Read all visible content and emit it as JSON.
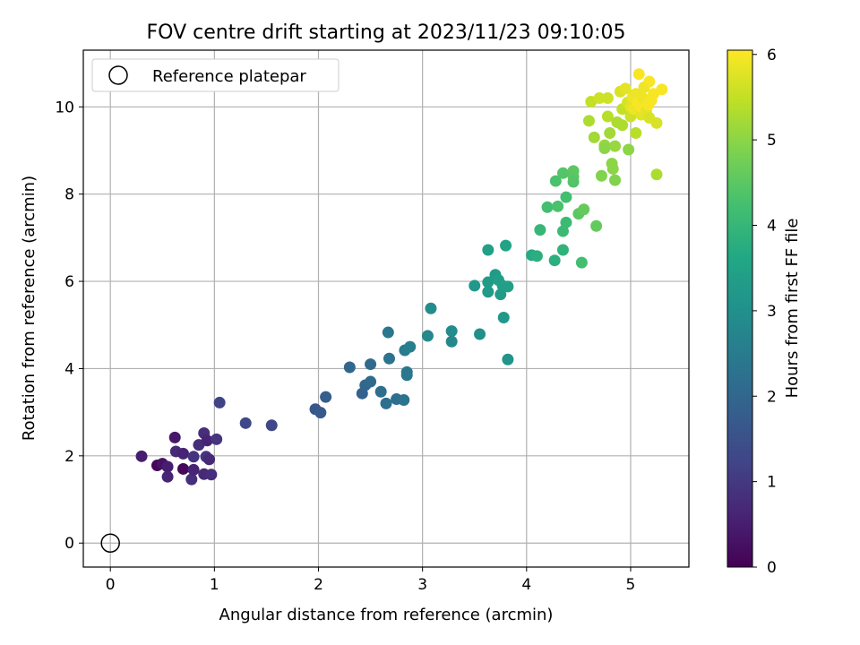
{
  "chart_data": {
    "type": "scatter",
    "title": "FOV centre drift starting at 2023/11/23 09:10:05",
    "xlabel": "Angular distance from reference (arcmin)",
    "ylabel": "Rotation from reference (arcmin)",
    "xlim": [
      -0.26,
      5.56
    ],
    "ylim": [
      -0.55,
      11.3
    ],
    "xticks": [
      0,
      1,
      2,
      3,
      4,
      5
    ],
    "yticks": [
      0,
      2,
      4,
      6,
      8,
      10
    ],
    "grid": true,
    "legend": {
      "placement": "top-left",
      "label": "Reference platepar"
    },
    "colorbar": {
      "label": "Hours from first FF file",
      "colormap": "viridis",
      "range": [
        0,
        6.05
      ],
      "ticks": [
        0,
        1,
        2,
        3,
        4,
        5,
        6
      ]
    },
    "reference_point": {
      "x": 0,
      "y": 0
    },
    "points": [
      {
        "x": 0.3,
        "y": 1.99,
        "c": 0.5
      },
      {
        "x": 0.45,
        "y": 1.78,
        "c": 0.1
      },
      {
        "x": 0.5,
        "y": 1.82,
        "c": 0.3
      },
      {
        "x": 0.55,
        "y": 1.75,
        "c": 0.5
      },
      {
        "x": 0.55,
        "y": 1.52,
        "c": 0.6
      },
      {
        "x": 0.62,
        "y": 2.42,
        "c": 0.4
      },
      {
        "x": 0.63,
        "y": 2.1,
        "c": 0.7
      },
      {
        "x": 0.7,
        "y": 2.05,
        "c": 0.6
      },
      {
        "x": 0.7,
        "y": 1.7,
        "c": 0.1
      },
      {
        "x": 0.78,
        "y": 1.46,
        "c": 0.8
      },
      {
        "x": 0.8,
        "y": 1.68,
        "c": 0.6
      },
      {
        "x": 0.8,
        "y": 1.98,
        "c": 0.9
      },
      {
        "x": 0.85,
        "y": 2.25,
        "c": 0.8
      },
      {
        "x": 0.9,
        "y": 1.58,
        "c": 0.7
      },
      {
        "x": 0.9,
        "y": 2.52,
        "c": 0.8
      },
      {
        "x": 0.92,
        "y": 1.98,
        "c": 0.9
      },
      {
        "x": 0.93,
        "y": 2.35,
        "c": 0.6
      },
      {
        "x": 0.95,
        "y": 1.92,
        "c": 0.7
      },
      {
        "x": 0.97,
        "y": 1.57,
        "c": 0.8
      },
      {
        "x": 1.02,
        "y": 2.38,
        "c": 0.9
      },
      {
        "x": 1.05,
        "y": 3.22,
        "c": 1.2
      },
      {
        "x": 1.3,
        "y": 2.75,
        "c": 1.3
      },
      {
        "x": 1.55,
        "y": 2.7,
        "c": 1.3
      },
      {
        "x": 1.97,
        "y": 3.07,
        "c": 1.6
      },
      {
        "x": 2.02,
        "y": 2.99,
        "c": 1.7
      },
      {
        "x": 2.07,
        "y": 3.35,
        "c": 1.8
      },
      {
        "x": 2.3,
        "y": 4.03,
        "c": 2.0
      },
      {
        "x": 2.42,
        "y": 3.43,
        "c": 1.9
      },
      {
        "x": 2.45,
        "y": 3.62,
        "c": 2.0
      },
      {
        "x": 2.5,
        "y": 3.7,
        "c": 2.1
      },
      {
        "x": 2.5,
        "y": 4.1,
        "c": 2.1
      },
      {
        "x": 2.6,
        "y": 3.47,
        "c": 2.2
      },
      {
        "x": 2.65,
        "y": 3.2,
        "c": 2.2
      },
      {
        "x": 2.67,
        "y": 4.83,
        "c": 2.4
      },
      {
        "x": 2.68,
        "y": 4.23,
        "c": 2.3
      },
      {
        "x": 2.75,
        "y": 3.3,
        "c": 2.2
      },
      {
        "x": 2.82,
        "y": 3.28,
        "c": 2.3
      },
      {
        "x": 2.83,
        "y": 4.42,
        "c": 2.5
      },
      {
        "x": 2.85,
        "y": 3.92,
        "c": 2.4
      },
      {
        "x": 2.85,
        "y": 3.85,
        "c": 2.4
      },
      {
        "x": 2.88,
        "y": 4.5,
        "c": 2.6
      },
      {
        "x": 3.05,
        "y": 4.75,
        "c": 2.8
      },
      {
        "x": 3.08,
        "y": 5.38,
        "c": 2.9
      },
      {
        "x": 3.28,
        "y": 4.86,
        "c": 2.9
      },
      {
        "x": 3.28,
        "y": 4.62,
        "c": 2.8
      },
      {
        "x": 3.5,
        "y": 5.9,
        "c": 3.2
      },
      {
        "x": 3.55,
        "y": 4.79,
        "c": 3.0
      },
      {
        "x": 3.63,
        "y": 6.72,
        "c": 3.4
      },
      {
        "x": 3.63,
        "y": 5.98,
        "c": 3.3
      },
      {
        "x": 3.63,
        "y": 5.76,
        "c": 3.3
      },
      {
        "x": 3.7,
        "y": 6.15,
        "c": 3.3
      },
      {
        "x": 3.73,
        "y": 6.03,
        "c": 3.4
      },
      {
        "x": 3.75,
        "y": 5.7,
        "c": 3.3
      },
      {
        "x": 3.77,
        "y": 5.9,
        "c": 3.4
      },
      {
        "x": 3.78,
        "y": 5.17,
        "c": 3.2
      },
      {
        "x": 3.8,
        "y": 6.82,
        "c": 3.5
      },
      {
        "x": 3.82,
        "y": 5.88,
        "c": 3.4
      },
      {
        "x": 3.82,
        "y": 4.21,
        "c": 3.1
      },
      {
        "x": 4.05,
        "y": 6.6,
        "c": 3.7
      },
      {
        "x": 4.1,
        "y": 6.58,
        "c": 3.8
      },
      {
        "x": 4.13,
        "y": 7.18,
        "c": 4.0
      },
      {
        "x": 4.2,
        "y": 7.7,
        "c": 4.2
      },
      {
        "x": 4.27,
        "y": 6.48,
        "c": 3.8
      },
      {
        "x": 4.28,
        "y": 8.3,
        "c": 4.3
      },
      {
        "x": 4.3,
        "y": 7.72,
        "c": 4.3
      },
      {
        "x": 4.35,
        "y": 6.72,
        "c": 3.9
      },
      {
        "x": 4.35,
        "y": 7.15,
        "c": 4.1
      },
      {
        "x": 4.35,
        "y": 8.48,
        "c": 4.4
      },
      {
        "x": 4.38,
        "y": 7.93,
        "c": 4.2
      },
      {
        "x": 4.38,
        "y": 7.35,
        "c": 4.1
      },
      {
        "x": 4.45,
        "y": 8.53,
        "c": 4.5
      },
      {
        "x": 4.45,
        "y": 8.4,
        "c": 4.5
      },
      {
        "x": 4.45,
        "y": 8.28,
        "c": 4.4
      },
      {
        "x": 4.5,
        "y": 7.55,
        "c": 4.5
      },
      {
        "x": 4.53,
        "y": 6.43,
        "c": 4.2
      },
      {
        "x": 4.55,
        "y": 7.65,
        "c": 4.6
      },
      {
        "x": 4.6,
        "y": 9.68,
        "c": 5.3
      },
      {
        "x": 4.62,
        "y": 10.12,
        "c": 5.5
      },
      {
        "x": 4.65,
        "y": 9.3,
        "c": 5.2
      },
      {
        "x": 4.67,
        "y": 7.27,
        "c": 4.6
      },
      {
        "x": 4.7,
        "y": 10.2,
        "c": 5.6
      },
      {
        "x": 4.72,
        "y": 8.42,
        "c": 4.9
      },
      {
        "x": 4.75,
        "y": 9.12,
        "c": 5.1
      },
      {
        "x": 4.75,
        "y": 9.05,
        "c": 5.0
      },
      {
        "x": 4.78,
        "y": 10.2,
        "c": 5.6
      },
      {
        "x": 4.78,
        "y": 9.78,
        "c": 5.4
      },
      {
        "x": 4.8,
        "y": 9.4,
        "c": 5.2
      },
      {
        "x": 4.82,
        "y": 8.7,
        "c": 5.0
      },
      {
        "x": 4.83,
        "y": 8.58,
        "c": 5.0
      },
      {
        "x": 4.85,
        "y": 8.32,
        "c": 4.9
      },
      {
        "x": 4.85,
        "y": 9.1,
        "c": 5.1
      },
      {
        "x": 4.87,
        "y": 9.65,
        "c": 5.3
      },
      {
        "x": 4.9,
        "y": 10.35,
        "c": 5.7
      },
      {
        "x": 4.92,
        "y": 9.95,
        "c": 5.5
      },
      {
        "x": 4.92,
        "y": 9.58,
        "c": 5.3
      },
      {
        "x": 4.95,
        "y": 10.42,
        "c": 5.8
      },
      {
        "x": 4.97,
        "y": 10.1,
        "c": 5.7
      },
      {
        "x": 4.98,
        "y": 9.02,
        "c": 5.0
      },
      {
        "x": 5.0,
        "y": 10.0,
        "c": 5.8
      },
      {
        "x": 5.0,
        "y": 9.78,
        "c": 5.6
      },
      {
        "x": 5.02,
        "y": 10.22,
        "c": 5.9
      },
      {
        "x": 5.03,
        "y": 9.95,
        "c": 5.9
      },
      {
        "x": 5.05,
        "y": 9.4,
        "c": 5.4
      },
      {
        "x": 5.05,
        "y": 10.3,
        "c": 5.9
      },
      {
        "x": 5.07,
        "y": 10.1,
        "c": 6.0
      },
      {
        "x": 5.08,
        "y": 10.75,
        "c": 6.0
      },
      {
        "x": 5.1,
        "y": 9.82,
        "c": 5.8
      },
      {
        "x": 5.1,
        "y": 10.0,
        "c": 6.0
      },
      {
        "x": 5.12,
        "y": 10.2,
        "c": 5.9
      },
      {
        "x": 5.13,
        "y": 10.45,
        "c": 5.9
      },
      {
        "x": 5.15,
        "y": 9.9,
        "c": 5.8
      },
      {
        "x": 5.17,
        "y": 10.05,
        "c": 6.0
      },
      {
        "x": 5.18,
        "y": 10.58,
        "c": 6.0
      },
      {
        "x": 5.18,
        "y": 9.75,
        "c": 5.7
      },
      {
        "x": 5.2,
        "y": 10.15,
        "c": 6.0
      },
      {
        "x": 5.22,
        "y": 10.3,
        "c": 6.0
      },
      {
        "x": 5.25,
        "y": 9.63,
        "c": 5.7
      },
      {
        "x": 5.25,
        "y": 8.45,
        "c": 5.3
      },
      {
        "x": 5.3,
        "y": 10.4,
        "c": 6.0
      }
    ]
  }
}
